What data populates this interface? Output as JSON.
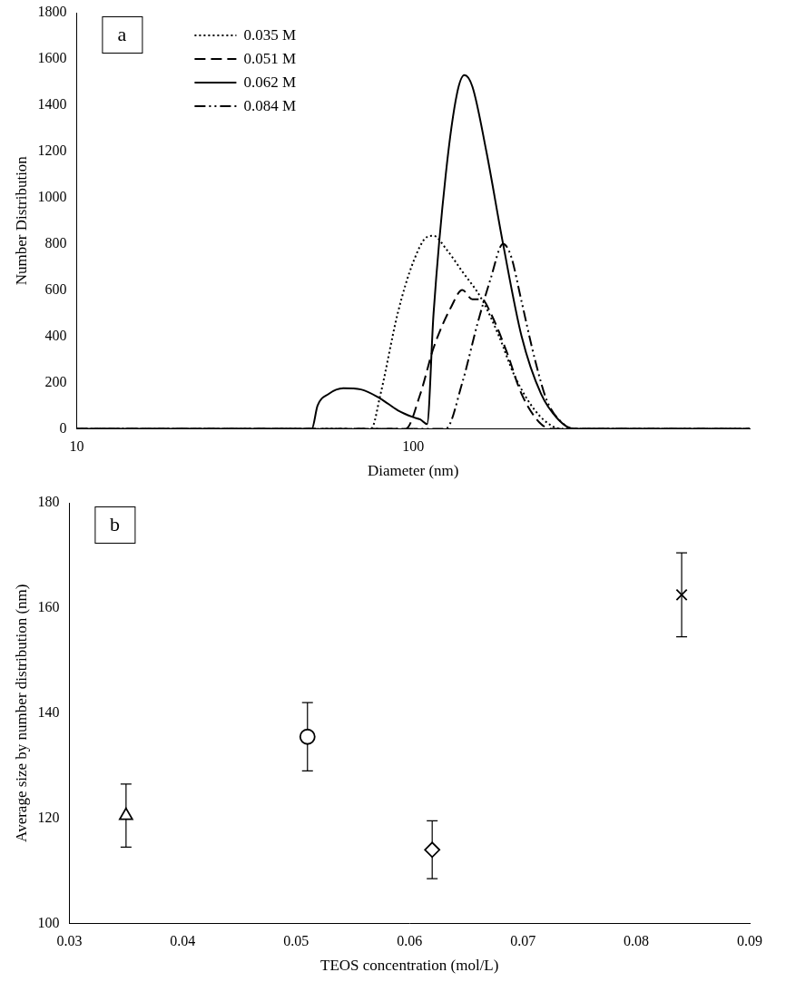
{
  "chart_data": [
    {
      "type": "line",
      "title": "a",
      "x_label": "Diameter (nm)",
      "y_label": "Number Distribution",
      "log": "x",
      "xlim": [
        10,
        1000
      ],
      "xticks": [
        10,
        100
      ],
      "ylim": [
        0,
        1800
      ],
      "yticks": [
        0,
        200,
        400,
        600,
        800,
        1000,
        1200,
        1400,
        1600,
        1800
      ],
      "grid": false,
      "legend": "upper left",
      "series": [
        {
          "name": "0.035 M",
          "color": "#000000",
          "line_style": "dotted",
          "x": [
            10,
            75,
            80,
            90,
            100,
            110,
            115,
            125,
            140,
            160,
            180,
            200,
            230,
            260,
            280,
            1000
          ],
          "values": [
            0,
            0,
            150,
            500,
            720,
            830,
            835,
            780,
            680,
            560,
            400,
            230,
            80,
            10,
            0,
            0
          ]
        },
        {
          "name": "0.051 M",
          "color": "#000000",
          "line_style": "dashed",
          "x": [
            10,
            95,
            105,
            115,
            130,
            140,
            150,
            160,
            170,
            190,
            210,
            240,
            260,
            1000
          ],
          "values": [
            0,
            0,
            150,
            350,
            530,
            600,
            560,
            560,
            500,
            330,
            150,
            20,
            0,
            0
          ]
        },
        {
          "name": "0.062 M",
          "color": "#000000",
          "line_style": "solid",
          "x": [
            10,
            50,
            52,
            56,
            62,
            70,
            80,
            90,
            100,
            105,
            110,
            115,
            125,
            135,
            142,
            150,
            165,
            185,
            210,
            240,
            270,
            300,
            1000
          ],
          "values": [
            0,
            0,
            100,
            150,
            175,
            170,
            130,
            80,
            50,
            40,
            20,
            500,
            1100,
            1450,
            1530,
            1480,
            1200,
            800,
            400,
            150,
            40,
            0,
            0
          ]
        },
        {
          "name": "0.084 M",
          "color": "#000000",
          "line_style": "dashdotdot",
          "x": [
            10,
            125,
            140,
            155,
            170,
            185,
            195,
            210,
            230,
            250,
            280,
            300,
            1000
          ],
          "values": [
            0,
            0,
            200,
            450,
            650,
            800,
            750,
            550,
            300,
            120,
            20,
            0,
            0
          ]
        }
      ]
    },
    {
      "type": "scatter",
      "title": "b",
      "x_label": "TEOS concentration (mol/L)",
      "y_label": "Average size by number distribution (nm)",
      "xlim": [
        0.03,
        0.09
      ],
      "xticks": [
        0.03,
        0.04,
        0.05,
        0.06,
        0.07,
        0.08,
        0.09
      ],
      "ylim": [
        100,
        180
      ],
      "yticks": [
        100,
        120,
        140,
        160,
        180
      ],
      "grid": false,
      "series": [
        {
          "color": "#000000",
          "marker": "triangle",
          "x": [
            0.035
          ],
          "values": [
            120.5
          ],
          "errors": [
            6
          ]
        },
        {
          "color": "#000000",
          "marker": "circle",
          "x": [
            0.051
          ],
          "values": [
            135.5
          ],
          "errors": [
            6.5
          ]
        },
        {
          "color": "#000000",
          "marker": "diamond",
          "x": [
            0.062
          ],
          "values": [
            114
          ],
          "errors": [
            5.5
          ]
        },
        {
          "color": "#000000",
          "marker": "x",
          "x": [
            0.084
          ],
          "values": [
            162.5
          ],
          "errors": [
            8
          ]
        }
      ]
    }
  ]
}
